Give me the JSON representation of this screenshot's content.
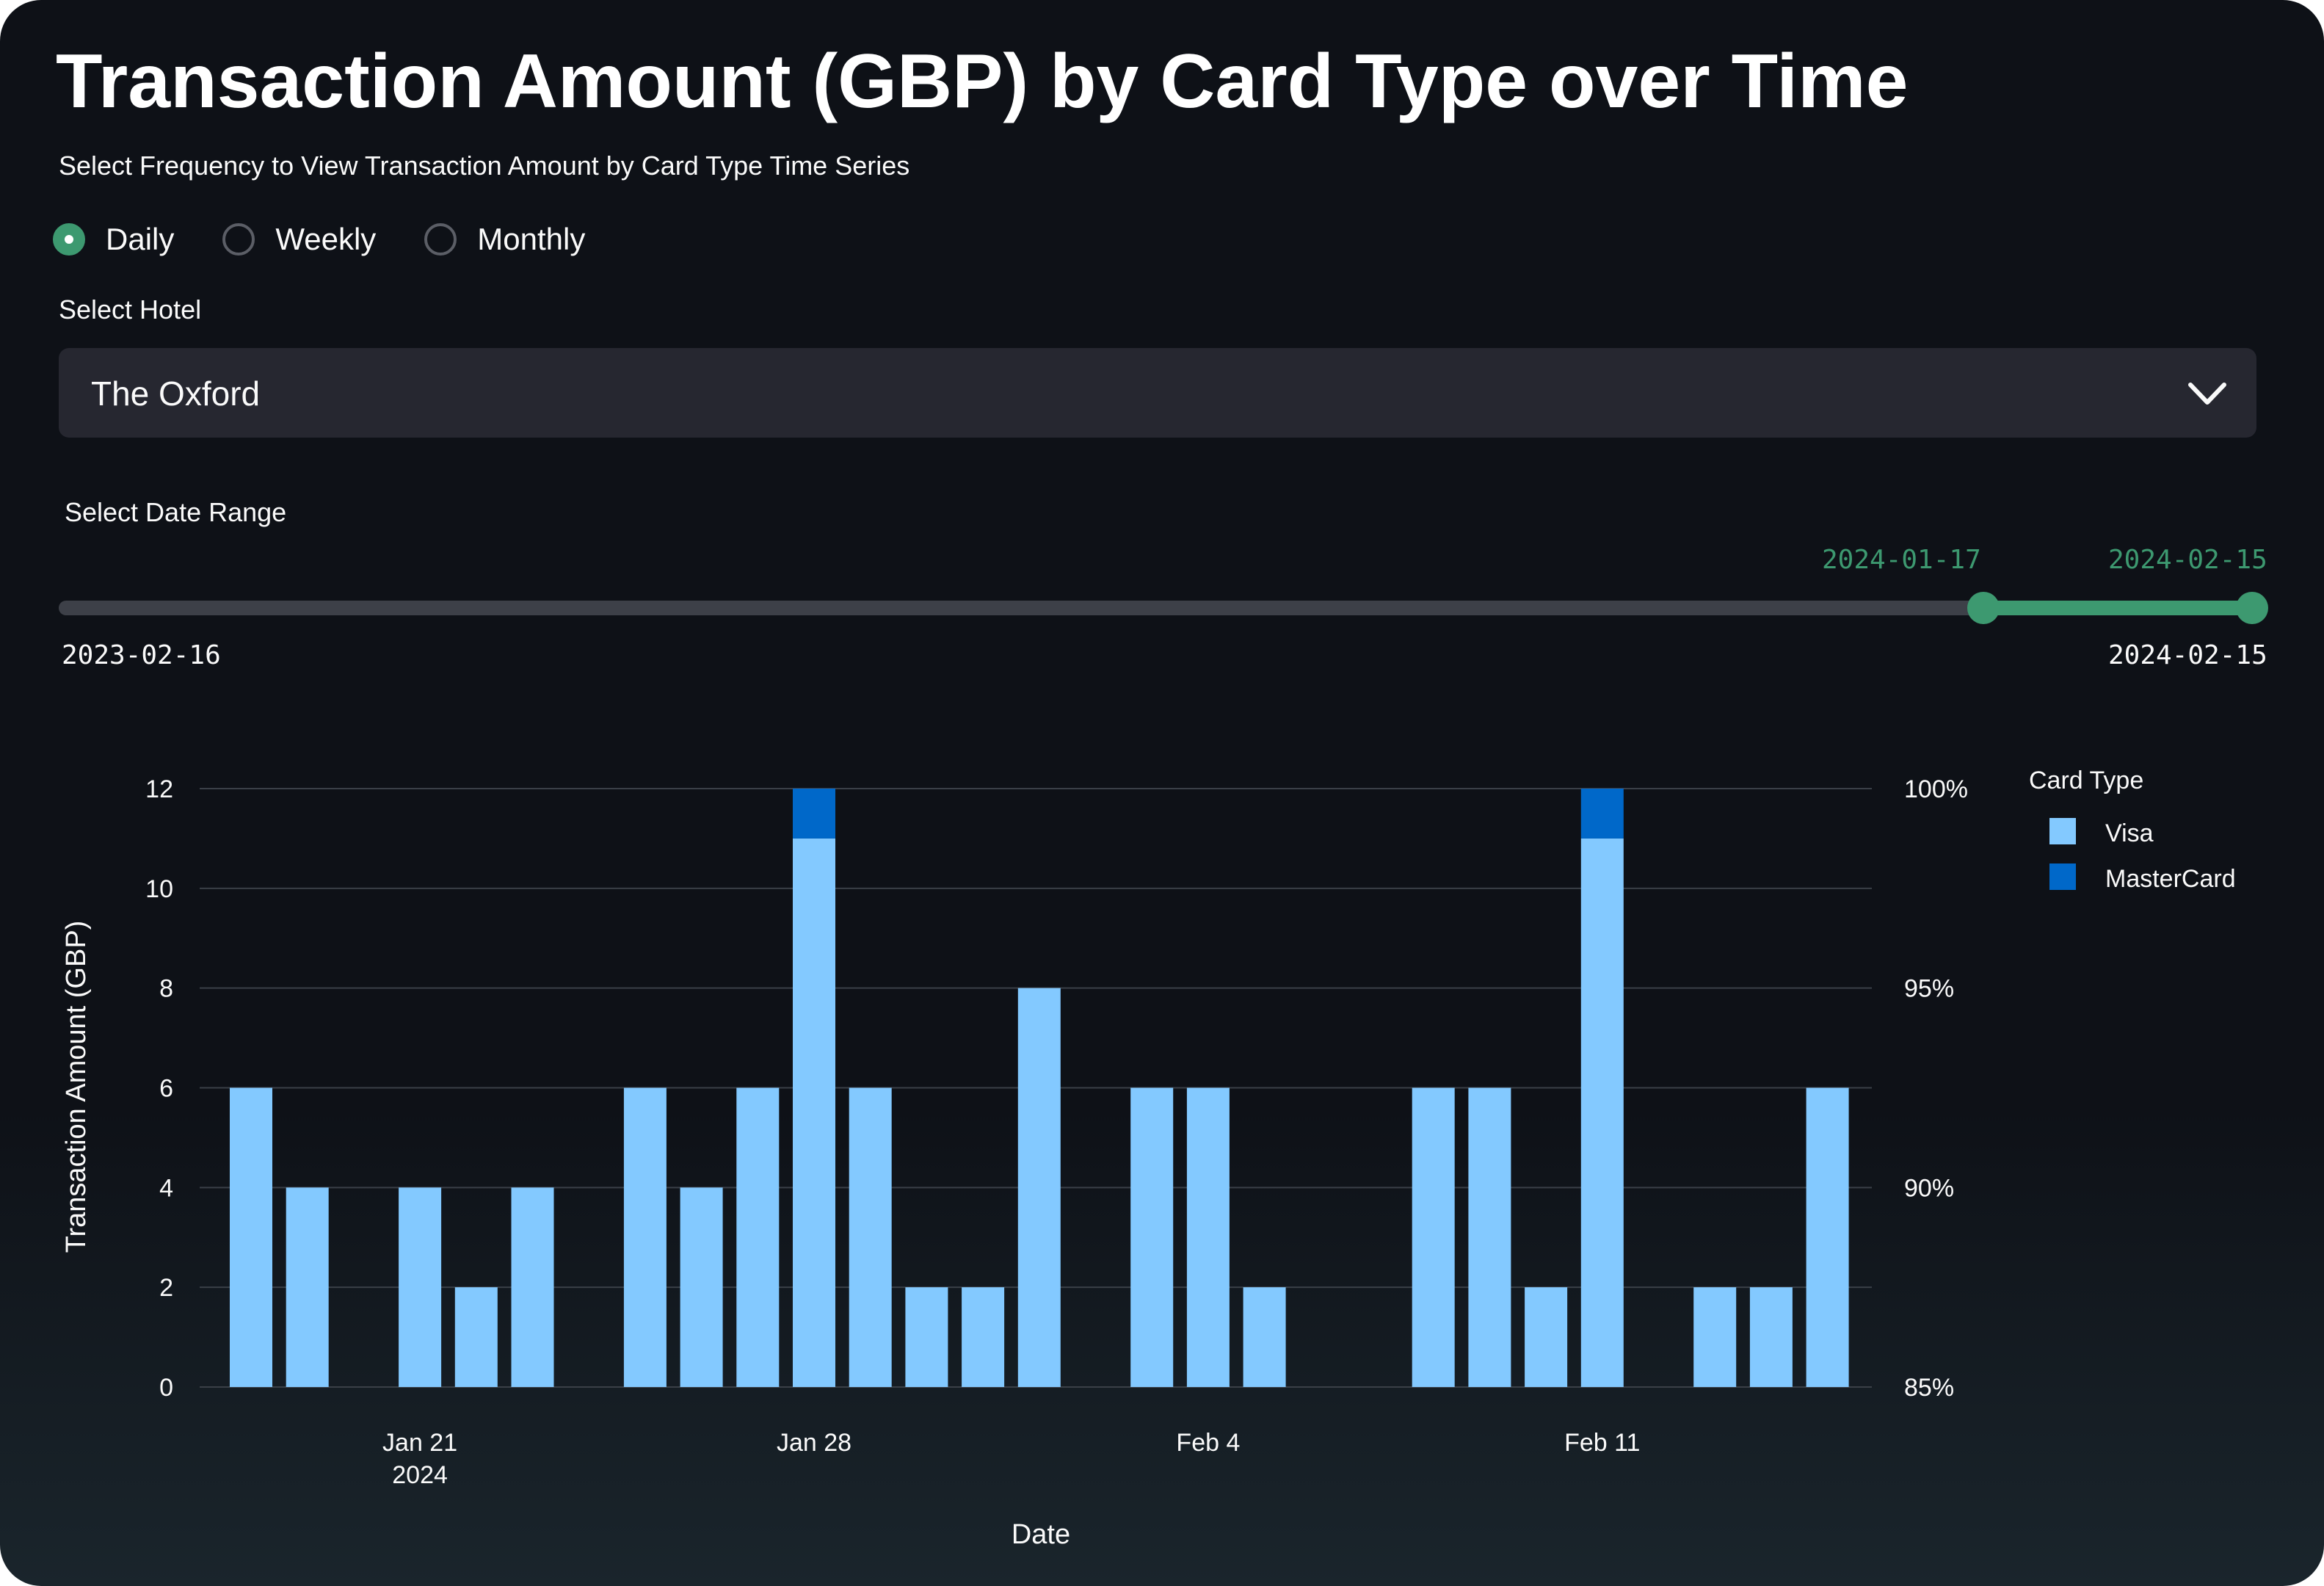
{
  "page": {
    "title": "Transaction Amount (GBP) by Card Type over Time"
  },
  "frequency": {
    "label": "Select Frequency to View Transaction Amount by Card Type Time Series",
    "options": [
      "Daily",
      "Weekly",
      "Monthly"
    ],
    "selected": "Daily"
  },
  "hotel": {
    "label": "Select Hotel",
    "selected": "The Oxford"
  },
  "date_range": {
    "label": "Select Date Range",
    "min": "2023-02-16",
    "max": "2024-02-15",
    "start": "2024-01-17",
    "end": "2024-02-15"
  },
  "colors": {
    "accent": "#3d9970",
    "visa": "#83c9ff",
    "mastercard": "#0068c9"
  },
  "icons": {
    "dropdown": "chevron-down-icon"
  },
  "chart_data": {
    "type": "bar",
    "stacked": true,
    "xlabel": "Date",
    "ylabel": "Transaction Amount (GBP)",
    "ylim": [
      0,
      12
    ],
    "y_ticks": [
      0,
      2,
      4,
      6,
      8,
      10,
      12
    ],
    "y2_ticks": [
      "85%",
      "90%",
      "95%",
      "100%"
    ],
    "x_ticks": [
      {
        "date": "2024-01-21",
        "label": "Jan 21",
        "sublabel": "2024"
      },
      {
        "date": "2024-01-28",
        "label": "Jan 28"
      },
      {
        "date": "2024-02-04",
        "label": "Feb 4"
      },
      {
        "date": "2024-02-11",
        "label": "Feb 11"
      }
    ],
    "x_range": [
      "2024-01-17",
      "2024-02-15"
    ],
    "legend": {
      "title": "Card Type",
      "position": "right"
    },
    "grid": true,
    "series": [
      {
        "name": "Visa",
        "x": [
          "2024-01-18",
          "2024-01-19",
          "2024-01-21",
          "2024-01-22",
          "2024-01-23",
          "2024-01-25",
          "2024-01-26",
          "2024-01-27",
          "2024-01-28",
          "2024-01-29",
          "2024-01-30",
          "2024-01-31",
          "2024-02-01",
          "2024-02-03",
          "2024-02-04",
          "2024-02-05",
          "2024-02-08",
          "2024-02-09",
          "2024-02-10",
          "2024-02-11",
          "2024-02-13",
          "2024-02-14",
          "2024-02-15"
        ],
        "values": [
          6,
          4,
          4,
          2,
          4,
          6,
          4,
          6,
          11,
          6,
          2,
          2,
          8,
          6,
          6,
          2,
          6,
          6,
          2,
          11,
          2,
          2,
          6
        ]
      },
      {
        "name": "MasterCard",
        "x": [
          "2024-01-28",
          "2024-02-11"
        ],
        "values": [
          1,
          1
        ]
      }
    ]
  }
}
